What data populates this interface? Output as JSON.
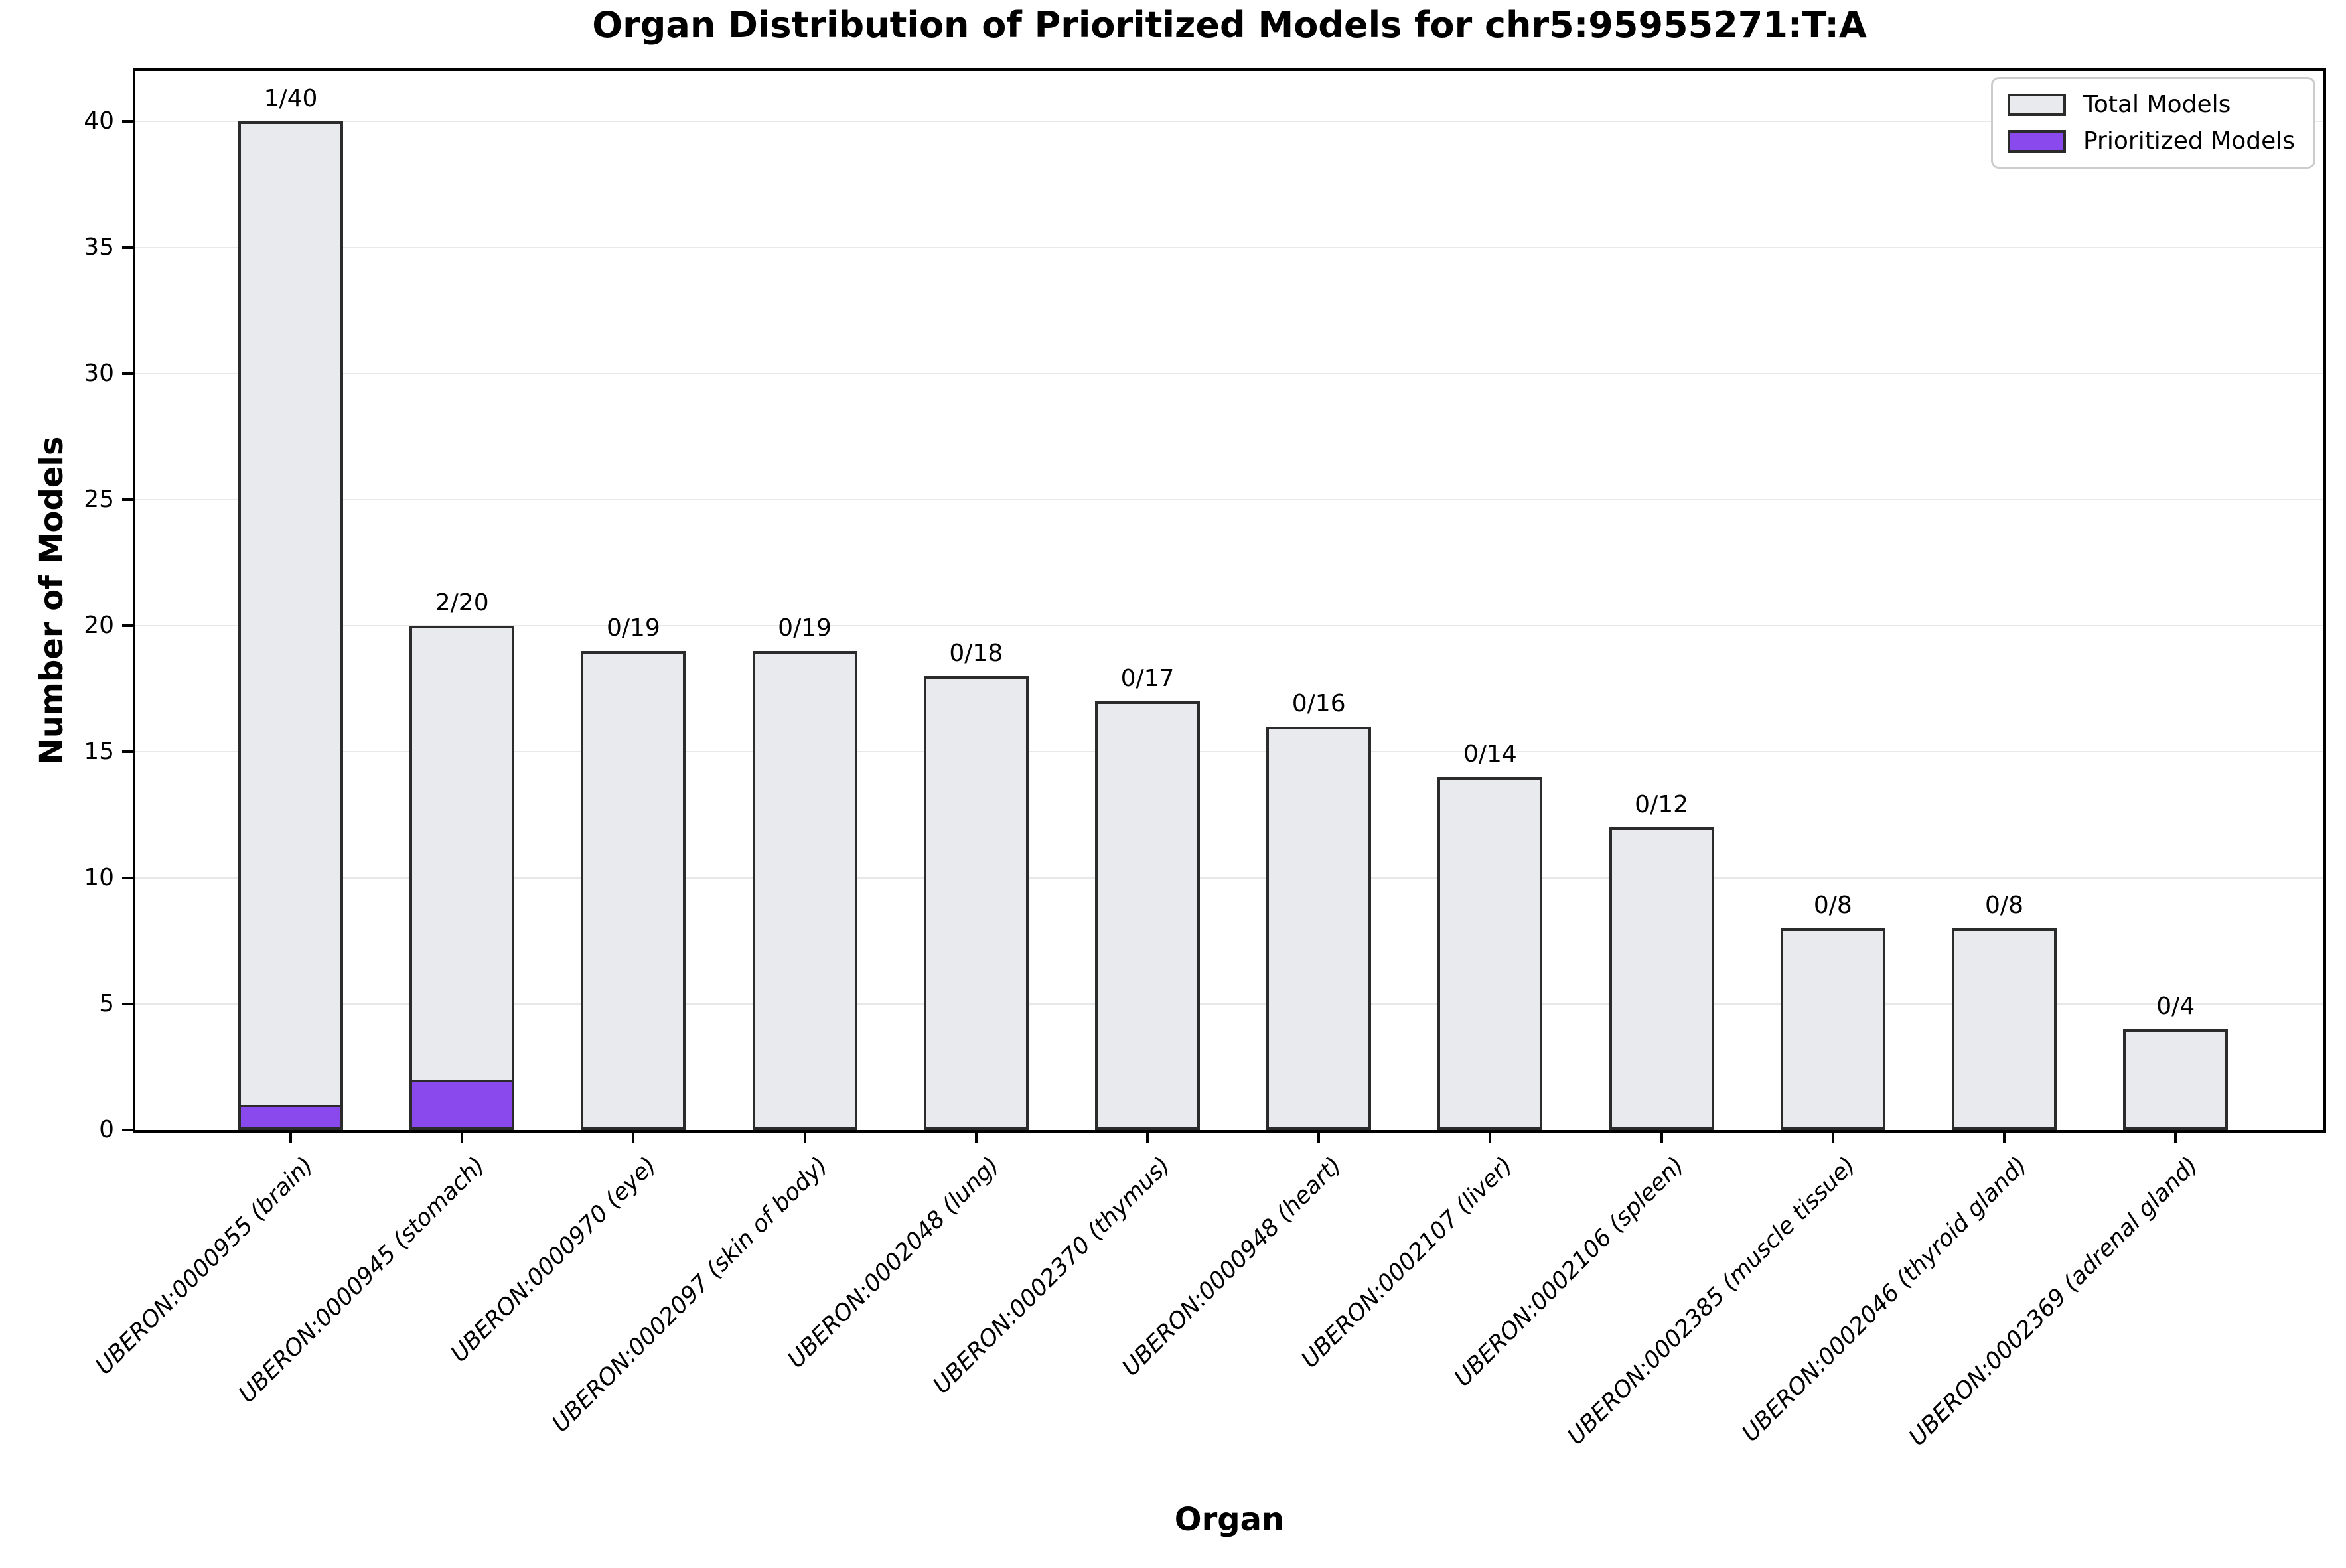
{
  "chart_data": {
    "type": "bar",
    "title": "Organ Distribution of Prioritized Models for chr5:95955271:T:A",
    "xlabel": "Organ",
    "ylabel": "Number of Models",
    "ylim": [
      0,
      42
    ],
    "yticks": [
      0,
      5,
      10,
      15,
      20,
      25,
      30,
      35,
      40
    ],
    "grid": "horizontal",
    "legend_position": "upper-right",
    "categories": [
      "UBERON:0000955 (brain)",
      "UBERON:0000945 (stomach)",
      "UBERON:0000970 (eye)",
      "UBERON:0002097 (skin of body)",
      "UBERON:0002048 (lung)",
      "UBERON:0002370 (thymus)",
      "UBERON:0000948 (heart)",
      "UBERON:0002107 (liver)",
      "UBERON:0002106 (spleen)",
      "UBERON:0002385 (muscle tissue)",
      "UBERON:0002046 (thyroid gland)",
      "UBERON:0002369 (adrenal gland)"
    ],
    "series": [
      {
        "name": "Total Models",
        "color": "#E9EAEE",
        "values": [
          40,
          20,
          19,
          19,
          18,
          17,
          16,
          14,
          12,
          8,
          8,
          4
        ]
      },
      {
        "name": "Prioritized Models",
        "color": "#8A49EC",
        "values": [
          1,
          2,
          0,
          0,
          0,
          0,
          0,
          0,
          0,
          0,
          0,
          0
        ]
      }
    ],
    "bar_labels": [
      "1/40",
      "2/20",
      "0/19",
      "0/19",
      "0/18",
      "0/17",
      "0/16",
      "0/14",
      "0/12",
      "0/8",
      "0/8",
      "0/4"
    ],
    "bar_edge_color": "#2b2b2b",
    "gridline_color": "#e8e8e8"
  }
}
